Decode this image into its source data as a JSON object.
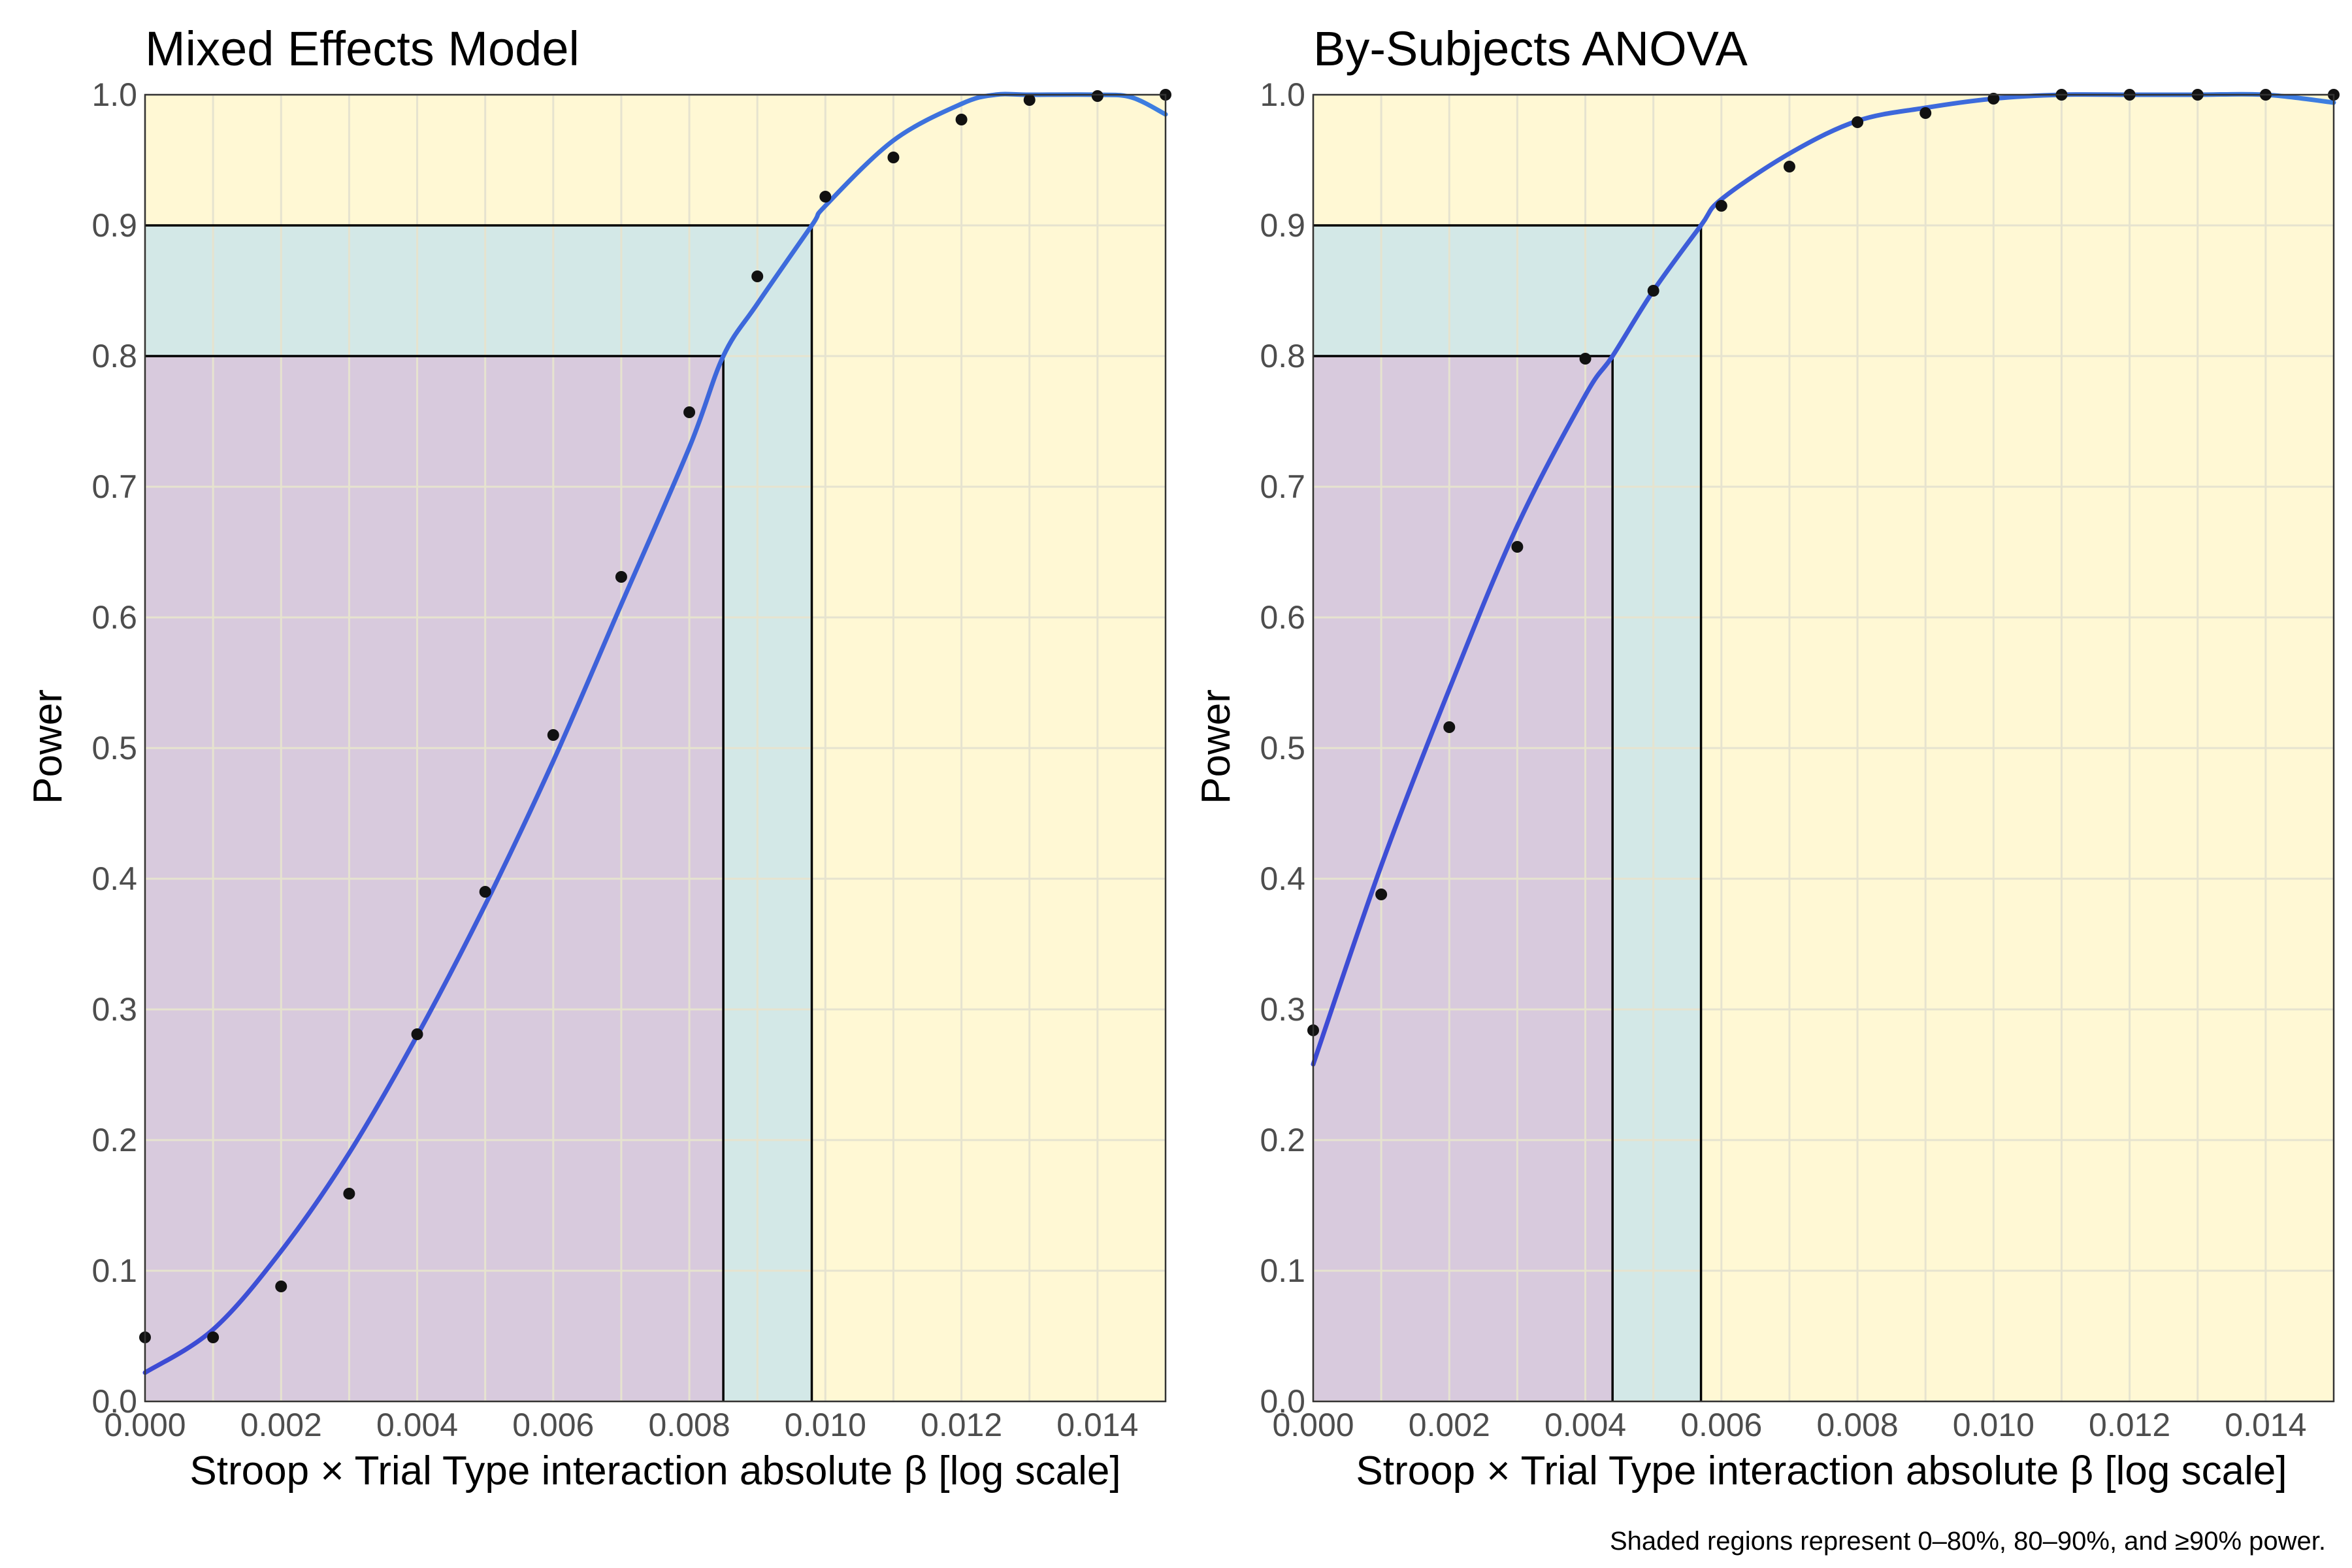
{
  "colors": {
    "region_low": "#d8cadd",
    "region_mid": "#d3e8e7",
    "region_high": "#fff8d4",
    "curve_start": "#3d4ad4",
    "curve_end": "#3d7ee0",
    "points": "#111111",
    "threshold_lines": "#000000"
  },
  "caption": "Shaded regions represent 0–80%, 80–90%, and ≥90% power.",
  "chart_data": [
    {
      "type": "line",
      "title": "Mixed Effects Model",
      "xlabel": "Stroop × Trial Type interaction absolute β [log scale]",
      "ylabel": "Power",
      "xlim": [
        0,
        0.015
      ],
      "ylim": [
        0,
        1
      ],
      "x_tick_labels": [
        "0.000",
        "0.002",
        "0.004",
        "0.006",
        "0.008",
        "0.010",
        "0.012",
        "0.014"
      ],
      "y_tick_labels": [
        "0.0",
        "0.1",
        "0.2",
        "0.3",
        "0.4",
        "0.5",
        "0.6",
        "0.7",
        "0.8",
        "0.9",
        "1.0"
      ],
      "grid": true,
      "shaded_regions": [
        "0–80%",
        "80–90%",
        "≥90%"
      ],
      "thresholds": [
        {
          "power": 0.8,
          "beta": 0.0085
        },
        {
          "power": 0.9,
          "beta": 0.0098
        }
      ],
      "points": {
        "x": [
          0.0,
          0.001,
          0.002,
          0.003,
          0.004,
          0.005,
          0.006,
          0.007,
          0.008,
          0.009,
          0.01,
          0.011,
          0.012,
          0.013,
          0.014,
          0.015
        ],
        "y": [
          0.049,
          0.049,
          0.088,
          0.159,
          0.281,
          0.39,
          0.51,
          0.631,
          0.757,
          0.861,
          0.922,
          0.952,
          0.981,
          0.996,
          0.999,
          1.0
        ]
      },
      "fit": {
        "x": [
          0.0,
          0.001,
          0.002,
          0.003,
          0.004,
          0.005,
          0.006,
          0.007,
          0.008,
          0.0085,
          0.009,
          0.0098,
          0.01,
          0.011,
          0.012,
          0.0125,
          0.013,
          0.014,
          0.0145,
          0.015
        ],
        "y": [
          0.022,
          0.055,
          0.115,
          0.19,
          0.28,
          0.38,
          0.49,
          0.61,
          0.73,
          0.8,
          0.84,
          0.9,
          0.915,
          0.965,
          0.993,
          1.0,
          1.0,
          1.0,
          0.998,
          0.985
        ]
      }
    },
    {
      "type": "line",
      "title": "By-Subjects ANOVA",
      "xlabel": "Stroop × Trial Type interaction absolute β [log scale]",
      "ylabel": "Power",
      "xlim": [
        0,
        0.015
      ],
      "ylim": [
        0,
        1
      ],
      "x_tick_labels": [
        "0.000",
        "0.002",
        "0.004",
        "0.006",
        "0.008",
        "0.010",
        "0.012",
        "0.014"
      ],
      "y_tick_labels": [
        "0.0",
        "0.1",
        "0.2",
        "0.3",
        "0.4",
        "0.5",
        "0.6",
        "0.7",
        "0.8",
        "0.9",
        "1.0"
      ],
      "grid": true,
      "shaded_regions": [
        "0–80%",
        "80–90%",
        "≥90%"
      ],
      "thresholds": [
        {
          "power": 0.8,
          "beta": 0.0044
        },
        {
          "power": 0.9,
          "beta": 0.0057
        }
      ],
      "points": {
        "x": [
          0.0,
          0.001,
          0.002,
          0.003,
          0.004,
          0.005,
          0.006,
          0.007,
          0.008,
          0.009,
          0.01,
          0.011,
          0.012,
          0.013,
          0.014,
          0.015
        ],
        "y": [
          0.284,
          0.388,
          0.516,
          0.654,
          0.798,
          0.85,
          0.915,
          0.945,
          0.979,
          0.986,
          0.997,
          1.0,
          1.0,
          1.0,
          1.0,
          1.0
        ]
      },
      "fit": {
        "x": [
          0.0,
          0.001,
          0.002,
          0.003,
          0.004,
          0.0044,
          0.005,
          0.0057,
          0.006,
          0.007,
          0.008,
          0.009,
          0.01,
          0.011,
          0.012,
          0.013,
          0.014,
          0.015
        ],
        "y": [
          0.258,
          0.41,
          0.545,
          0.67,
          0.77,
          0.8,
          0.85,
          0.9,
          0.92,
          0.955,
          0.98,
          0.99,
          0.997,
          1.0,
          1.0,
          1.0,
          1.0,
          0.994
        ]
      }
    }
  ]
}
